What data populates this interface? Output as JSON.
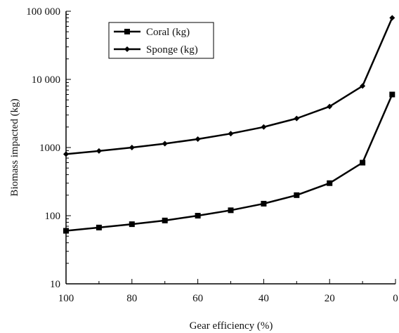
{
  "chart_data": {
    "type": "line",
    "xlabel": "Gear efficiency (%)",
    "ylabel": "Biomass impacted (kg)",
    "x": [
      100,
      90,
      80,
      70,
      60,
      50,
      40,
      30,
      20,
      10,
      1
    ],
    "xlim": [
      100,
      0
    ],
    "x_ticks": [
      100,
      80,
      60,
      40,
      20,
      0
    ],
    "x_tick_labels": [
      "100",
      "80",
      "60",
      "40",
      "20",
      "0"
    ],
    "y_scale": "log",
    "ylim": [
      10,
      100000
    ],
    "y_ticks": [
      10,
      100,
      1000,
      10000,
      100000
    ],
    "y_tick_labels": [
      "10",
      "100",
      "1000",
      "10 000",
      "100 000"
    ],
    "legend_position": "top-left",
    "series": [
      {
        "name": "Coral (kg)",
        "marker": "square",
        "color": "#000000",
        "values": [
          60,
          67,
          75,
          85,
          100,
          120,
          150,
          200,
          300,
          600,
          6000
        ]
      },
      {
        "name": "Sponge (kg)",
        "marker": "diamond",
        "color": "#000000",
        "values": [
          800,
          890,
          1000,
          1140,
          1330,
          1600,
          2000,
          2670,
          4000,
          8000,
          80000
        ]
      }
    ]
  }
}
